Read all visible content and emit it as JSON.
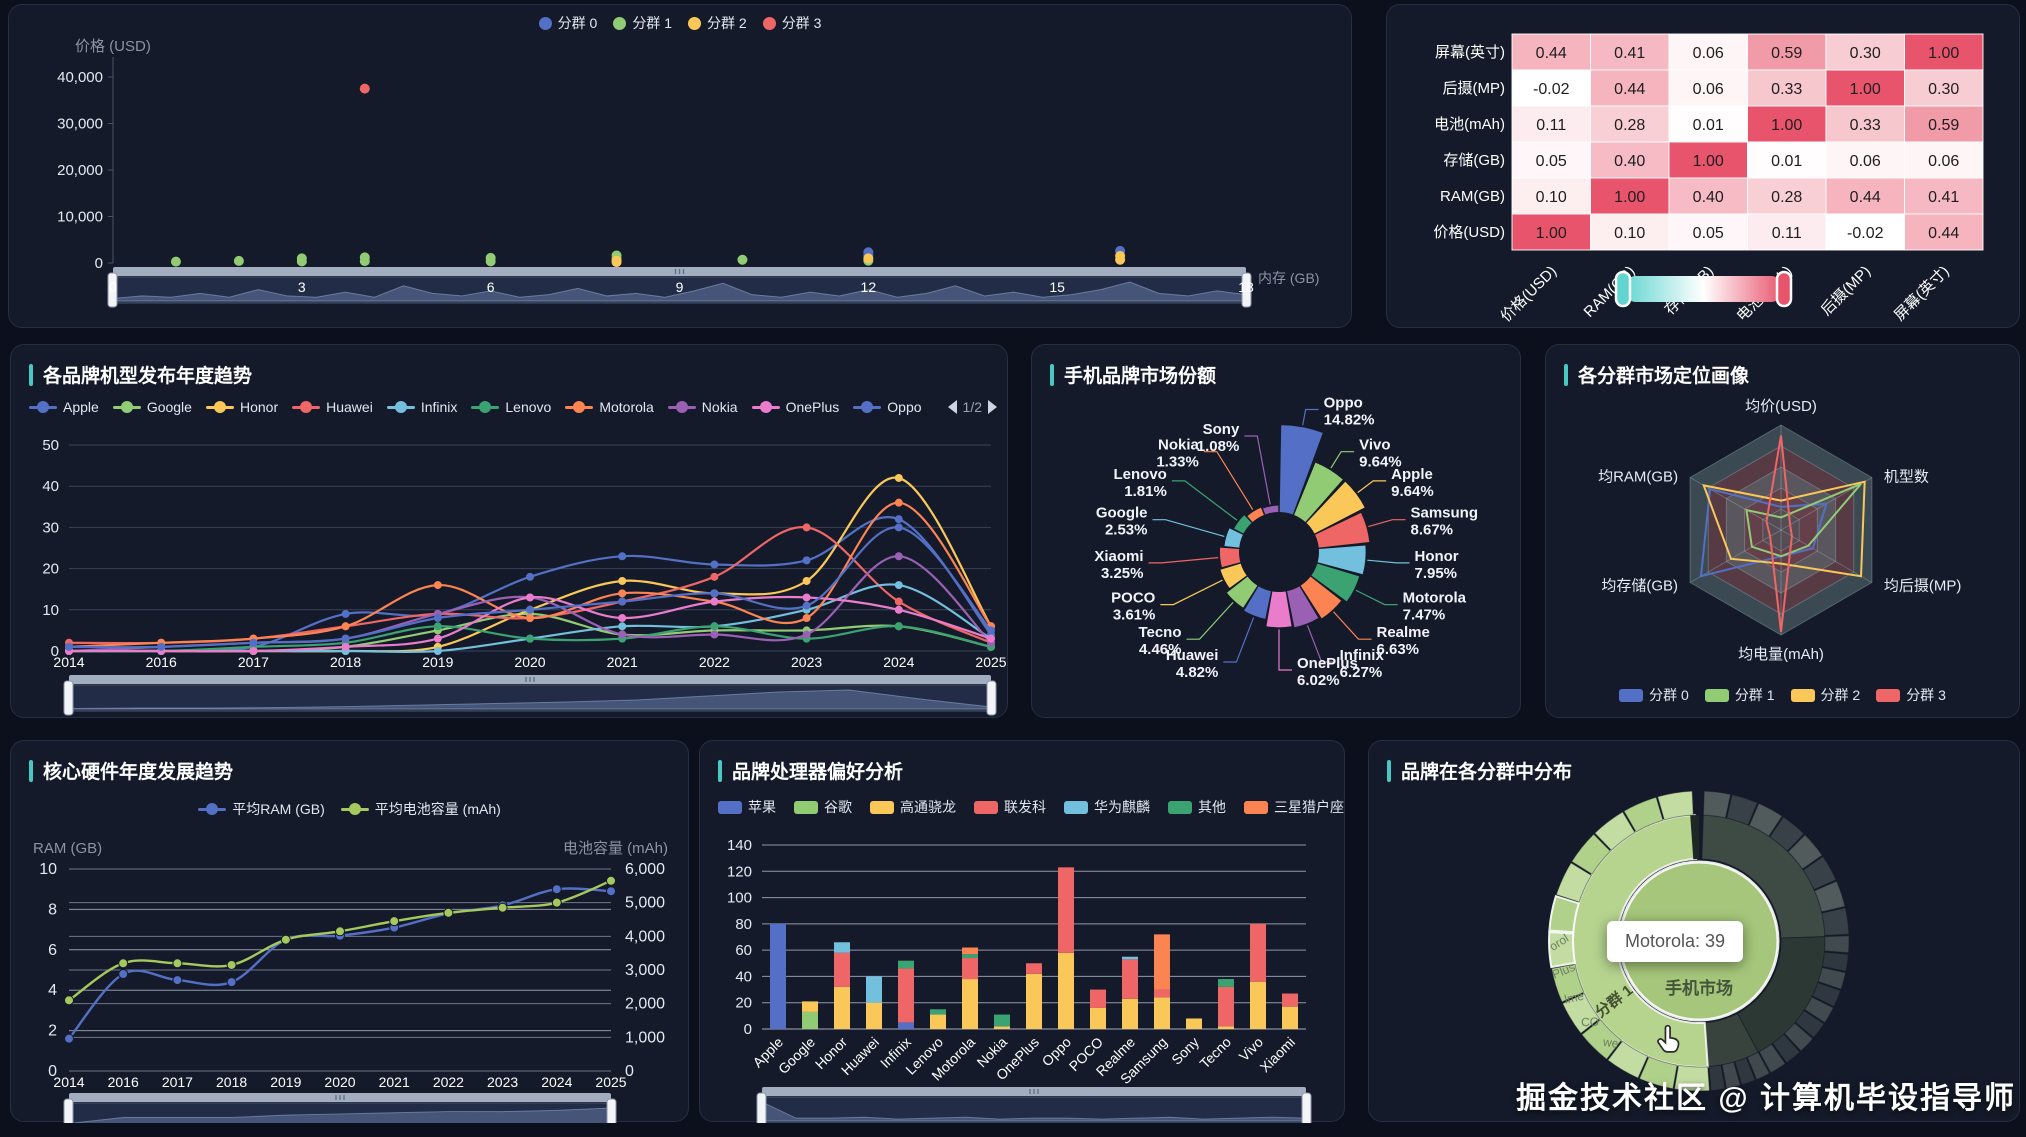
{
  "ui": {
    "watermark": "掘金技术社区 @ 计算机毕设指导师",
    "panels": {
      "trend": {
        "title": "各品牌机型发布年度趋势",
        "pager": "1/2"
      },
      "share": {
        "title": "手机品牌市场份额"
      },
      "radar": {
        "title": "各分群市场定位画像"
      },
      "hardware": {
        "title": "核心硬件年度发展趋势"
      },
      "cpu": {
        "title": "品牌处理器偏好分析"
      },
      "sunburst": {
        "title": "品牌在各分群中分布",
        "tooltip": "Motorola: 39"
      }
    }
  },
  "chart_data": [
    {
      "id": "cluster-scatter",
      "type": "scatter",
      "xlabel": "内存 (GB)",
      "ylabel": "价格 (USD)",
      "xlim": [
        0,
        18
      ],
      "ylim": [
        0,
        40000
      ],
      "x_ticks": [
        0,
        3,
        6,
        9,
        12,
        15,
        18
      ],
      "y_ticks": [
        0,
        10000,
        20000,
        30000,
        40000
      ],
      "series": [
        {
          "name": "分群 0",
          "color": "#5470c6",
          "points": [
            [
              12,
              2300
            ],
            [
              16,
              2600
            ],
            [
              12,
              1700
            ]
          ]
        },
        {
          "name": "分群 1",
          "color": "#91cc75",
          "points": [
            [
              1,
              300
            ],
            [
              2,
              450
            ],
            [
              3,
              1000
            ],
            [
              3,
              350
            ],
            [
              4,
              1200
            ],
            [
              4,
              400
            ],
            [
              6,
              1100
            ],
            [
              6,
              350
            ],
            [
              8,
              1600
            ],
            [
              8,
              900
            ],
            [
              10,
              700
            ],
            [
              12,
              500
            ]
          ]
        },
        {
          "name": "分群 2",
          "color": "#fac858",
          "points": [
            [
              8,
              500
            ],
            [
              12,
              1000
            ],
            [
              16,
              1500
            ],
            [
              16,
              700
            ],
            [
              8,
              200
            ]
          ]
        },
        {
          "name": "分群 3",
          "color": "#ee6666",
          "points": [
            [
              4,
              37500
            ]
          ]
        }
      ],
      "zoom_shadow": [
        2,
        4,
        3,
        6,
        3,
        9,
        4,
        3,
        7,
        3,
        12,
        6,
        4,
        8,
        3,
        5,
        10,
        4,
        6,
        3,
        8,
        14,
        5,
        3,
        7,
        4,
        9,
        3,
        6,
        12,
        4,
        7,
        3,
        5,
        9,
        15,
        6,
        4,
        8,
        5
      ]
    },
    {
      "id": "corr-heatmap",
      "type": "heatmap",
      "rows": [
        "屏幕(英寸)",
        "后摄(MP)",
        "电池(mAh)",
        "存储(GB)",
        "RAM(GB)",
        "价格(USD)"
      ],
      "cols": [
        "价格(USD)",
        "RAM(GB)",
        "存储(GB)",
        "电池(mAh)",
        "后摄(MP)",
        "屏幕(英寸)"
      ],
      "values": [
        [
          0.44,
          0.41,
          0.06,
          0.59,
          0.3,
          1.0
        ],
        [
          -0.02,
          0.44,
          0.06,
          0.33,
          1.0,
          0.3
        ],
        [
          0.11,
          0.28,
          0.01,
          1.0,
          0.33,
          0.59
        ],
        [
          0.05,
          0.4,
          1.0,
          0.01,
          0.06,
          0.06
        ],
        [
          0.1,
          1.0,
          0.4,
          0.28,
          0.44,
          0.41
        ],
        [
          1.0,
          0.1,
          0.05,
          0.11,
          -0.02,
          0.44
        ]
      ],
      "colorscale": {
        "low": "#63d5d0",
        "mid": "#ffffff",
        "high": "#e8546c"
      }
    },
    {
      "id": "brand-trend",
      "type": "line",
      "x": [
        2014,
        2016,
        2017,
        2018,
        2019,
        2020,
        2021,
        2022,
        2023,
        2024,
        2025
      ],
      "ylim": [
        0,
        50
      ],
      "y_ticks": [
        0,
        10,
        20,
        30,
        40,
        50
      ],
      "series": [
        {
          "name": "Apple",
          "color": "#5470c6",
          "values": [
            0,
            0,
            1,
            9,
            9,
            18,
            23,
            21,
            22,
            32,
            4
          ]
        },
        {
          "name": "Google",
          "color": "#91cc75",
          "values": [
            0,
            0,
            0,
            1,
            5,
            9,
            4,
            5,
            5,
            6,
            1
          ]
        },
        {
          "name": "Honor",
          "color": "#fac858",
          "values": [
            0,
            0,
            0,
            0,
            1,
            10,
            17,
            14,
            17,
            42,
            6
          ]
        },
        {
          "name": "Huawei",
          "color": "#ee6666",
          "values": [
            2,
            2,
            3,
            6,
            9,
            8,
            12,
            18,
            30,
            12,
            2
          ]
        },
        {
          "name": "Infinix",
          "color": "#73c0de",
          "values": [
            0,
            0,
            0,
            0,
            0,
            3,
            6,
            6,
            10,
            16,
            3
          ]
        },
        {
          "name": "Lenovo",
          "color": "#3ba272",
          "values": [
            0,
            0,
            1,
            2,
            6,
            3,
            3,
            6,
            3,
            6,
            1
          ]
        },
        {
          "name": "Motorola",
          "color": "#fc8452",
          "values": [
            1,
            2,
            3,
            6,
            16,
            8,
            14,
            12,
            8,
            36,
            6
          ]
        },
        {
          "name": "Nokia",
          "color": "#9a60b4",
          "values": [
            0,
            1,
            2,
            3,
            9,
            13,
            4,
            4,
            4,
            23,
            2
          ]
        },
        {
          "name": "OnePlus",
          "color": "#ea7ccc",
          "values": [
            0,
            0,
            0,
            1,
            3,
            13,
            8,
            12,
            13,
            10,
            3
          ]
        },
        {
          "name": "Oppo",
          "color": "#5470c6",
          "values": [
            1,
            1,
            2,
            3,
            8,
            10,
            12,
            14,
            11,
            30,
            5
          ]
        }
      ],
      "zoom_shadow": [
        1,
        2,
        2,
        3,
        5,
        8,
        11,
        14,
        18,
        26,
        34,
        38,
        20,
        4
      ]
    },
    {
      "id": "market-share",
      "type": "pie",
      "items": [
        {
          "name": "Oppo",
          "value": 14.82,
          "color": "#5470c6"
        },
        {
          "name": "Vivo",
          "value": 9.64,
          "color": "#91cc75"
        },
        {
          "name": "Apple",
          "value": 9.64,
          "color": "#fac858"
        },
        {
          "name": "Samsung",
          "value": 8.67,
          "color": "#ee6666"
        },
        {
          "name": "Honor",
          "value": 7.95,
          "color": "#73c0de"
        },
        {
          "name": "Motorola",
          "value": 7.47,
          "color": "#3ba272"
        },
        {
          "name": "Realme",
          "value": 6.63,
          "color": "#fc8452"
        },
        {
          "name": "Infinix",
          "value": 6.27,
          "color": "#9a60b4"
        },
        {
          "name": "OnePlus",
          "value": 6.02,
          "color": "#ea7ccc"
        },
        {
          "name": "Huawei",
          "value": 4.82,
          "color": "#5470c6"
        },
        {
          "name": "Tecno",
          "value": 4.46,
          "color": "#91cc75"
        },
        {
          "name": "POCO",
          "value": 3.61,
          "color": "#fac858"
        },
        {
          "name": "Xiaomi",
          "value": 3.25,
          "color": "#ee6666"
        },
        {
          "name": "Google",
          "value": 2.53,
          "color": "#73c0de"
        },
        {
          "name": "Lenovo",
          "value": 1.81,
          "color": "#3ba272"
        },
        {
          "name": "Nokia",
          "value": 1.33,
          "color": "#fc8452"
        },
        {
          "name": "Sony",
          "value": 1.08,
          "color": "#9a60b4"
        }
      ]
    },
    {
      "id": "cluster-radar",
      "type": "radar",
      "indicators": [
        "均价(USD)",
        "机型数",
        "均后摄(MP)",
        "均电量(mAh)",
        "均存储(GB)",
        "均RAM(GB)"
      ],
      "series": [
        {
          "name": "分群 0",
          "color": "#5470c6",
          "values": [
            0.22,
            0.5,
            0.35,
            0.25,
            0.88,
            0.78
          ]
        },
        {
          "name": "分群 1",
          "color": "#91cc75",
          "values": [
            0.12,
            0.88,
            0.3,
            0.25,
            0.32,
            0.38
          ]
        },
        {
          "name": "分群 2",
          "color": "#fac858",
          "values": [
            0.28,
            0.92,
            0.88,
            0.32,
            0.55,
            0.85
          ]
        },
        {
          "name": "分群 3",
          "color": "#ee6666",
          "values": [
            0.9,
            0.1,
            0.12,
            0.97,
            0.12,
            0.16
          ]
        }
      ]
    },
    {
      "id": "hardware-trend",
      "type": "line",
      "x": [
        2014,
        2016,
        2017,
        2018,
        2019,
        2020,
        2021,
        2022,
        2023,
        2024,
        2025
      ],
      "ylabel_left": "RAM (GB)",
      "ylabel_right": "电池容量 (mAh)",
      "ylim_left": [
        0,
        10
      ],
      "ylim_right": [
        0,
        6000
      ],
      "series": [
        {
          "name": "平均RAM (GB)",
          "color": "#5470c6",
          "axis": "left",
          "values": [
            1.6,
            4.8,
            4.5,
            4.4,
            6.5,
            6.7,
            7.1,
            7.8,
            8.2,
            9.0,
            8.9
          ]
        },
        {
          "name": "平均电池容量 (mAh)",
          "color": "#a6c95e",
          "axis": "right",
          "values": [
            2100,
            3200,
            3200,
            3150,
            3900,
            4150,
            4450,
            4700,
            4850,
            5000,
            5650
          ]
        }
      ],
      "zoom_shadow": [
        3,
        8,
        8,
        8,
        10,
        11,
        12,
        13,
        13,
        14,
        16
      ]
    },
    {
      "id": "cpu-preference",
      "type": "bar",
      "categories": [
        "Apple",
        "Google",
        "Honor",
        "Huawei",
        "Infinix",
        "Lenovo",
        "Motorola",
        "Nokia",
        "OnePlus",
        "Oppo",
        "POCO",
        "Realme",
        "Samsung",
        "Sony",
        "Tecno",
        "Vivo",
        "Xiaomi"
      ],
      "ylim": [
        0,
        140
      ],
      "y_ticks": [
        0,
        20,
        40,
        60,
        80,
        100,
        120,
        140
      ],
      "stacks": [
        {
          "name": "苹果",
          "color": "#5470c6",
          "values": [
            80,
            0,
            0,
            0,
            5,
            0,
            0,
            0,
            0,
            0,
            0,
            0,
            0,
            0,
            0,
            0,
            0
          ]
        },
        {
          "name": "谷歌",
          "color": "#91cc75",
          "values": [
            0,
            13,
            0,
            0,
            0,
            0,
            0,
            0,
            0,
            0,
            0,
            0,
            0,
            0,
            0,
            0,
            0
          ]
        },
        {
          "name": "高通骁龙",
          "color": "#fac858",
          "values": [
            0,
            8,
            32,
            20,
            0,
            11,
            38,
            2,
            42,
            58,
            16,
            23,
            24,
            8,
            2,
            36,
            17
          ]
        },
        {
          "name": "联发科",
          "color": "#ee6666",
          "values": [
            0,
            0,
            26,
            0,
            41,
            0,
            16,
            0,
            8,
            65,
            14,
            30,
            6,
            0,
            30,
            44,
            10
          ]
        },
        {
          "name": "华为麒麟",
          "color": "#73c0de",
          "values": [
            0,
            0,
            8,
            20,
            0,
            0,
            0,
            0,
            0,
            0,
            0,
            2,
            0,
            0,
            0,
            0,
            0
          ]
        },
        {
          "name": "其他",
          "color": "#3ba272",
          "values": [
            0,
            0,
            0,
            0,
            6,
            4,
            3,
            9,
            0,
            0,
            0,
            0,
            0,
            0,
            6,
            0,
            0
          ]
        },
        {
          "name": "三星猎户座",
          "color": "#fc8452",
          "values": [
            0,
            0,
            0,
            0,
            0,
            0,
            5,
            0,
            0,
            0,
            0,
            0,
            42,
            0,
            0,
            0,
            0
          ]
        }
      ],
      "zoom_shadow": [
        20,
        3,
        3,
        4,
        2,
        3,
        4,
        2,
        3,
        3,
        2,
        3,
        4,
        2,
        3,
        4,
        3
      ]
    },
    {
      "id": "cluster-sunburst",
      "type": "pie",
      "center_label": "手机市场",
      "ring_label": "分群 1",
      "clusters": [
        {
          "name": "分群 0",
          "a0": 2,
          "a1": 88,
          "color": "#3e4b45",
          "segs": 8,
          "out": [
            "rgba(141,155,143,0.50)",
            "rgba(141,155,143,0.30)"
          ]
        },
        {
          "name": "分群 2",
          "a0": 88,
          "a1": 152,
          "color": "#2c3834",
          "segs": 9,
          "out": [
            "rgba(120,134,124,0.45)",
            "rgba(120,134,124,0.28)"
          ]
        },
        {
          "name": "分群 3",
          "a0": 152,
          "a1": 176,
          "color": "#37433c",
          "segs": 4,
          "out": [
            "rgba(130,144,132,0.40)",
            "rgba(130,144,132,0.25)"
          ]
        },
        {
          "name": "分群 1",
          "a0": 176,
          "a1": 358,
          "color": "#b7d48f",
          "segs": 13,
          "out": [
            "#c3dca2",
            "#afd189"
          ]
        }
      ],
      "outer_label_fragments": [
        "orol",
        "Plus",
        "lme",
        "CO",
        "we"
      ],
      "hover": {
        "brand": "Motorola",
        "value": 39
      }
    }
  ]
}
